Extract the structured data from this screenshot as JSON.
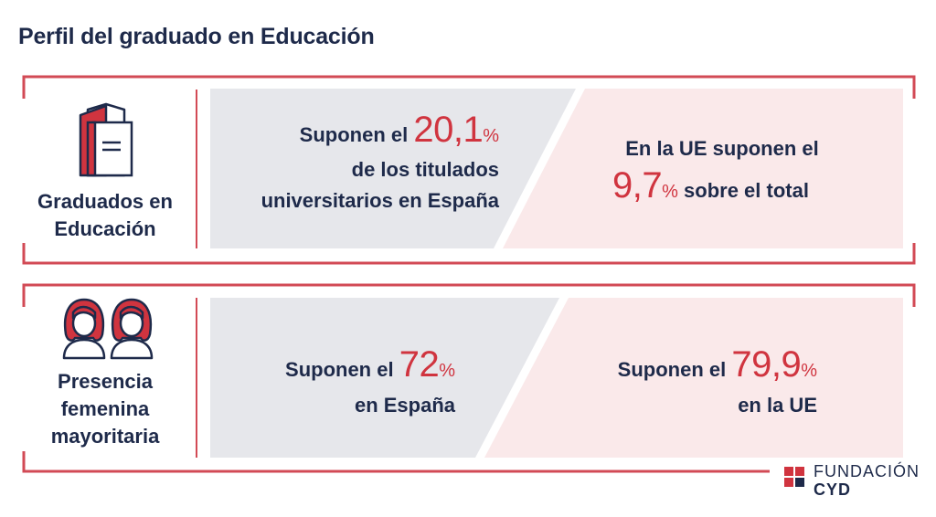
{
  "title": "Perfil del graduado en Educación",
  "colors": {
    "accent": "#d0343f",
    "navy": "#1e2a4a",
    "grey_panel": "#e6e7eb",
    "pink_panel": "#fae9ea"
  },
  "rows": [
    {
      "icon": "book-icon",
      "label_lines": [
        "Graduados en",
        "Educación"
      ],
      "left": {
        "pre": "Suponen el",
        "value": "20,1",
        "unit": "%",
        "line2": "de los titulados",
        "line3": "universitarios en España"
      },
      "right": {
        "line1": "En la UE suponen el",
        "value": "9,7",
        "unit": "%",
        "post": "sobre el total"
      }
    },
    {
      "icon": "women-icon",
      "label_lines": [
        "Presencia",
        "femenina",
        "mayoritaria"
      ],
      "left": {
        "pre": "Suponen el",
        "value": "72",
        "unit": "%",
        "line2": "en España"
      },
      "right": {
        "pre": "Suponen el",
        "value": "79,9",
        "unit": "%",
        "line2": "en la UE"
      }
    }
  ],
  "brand": {
    "line1": "FUNDACIÓN",
    "line2": "CYD"
  }
}
